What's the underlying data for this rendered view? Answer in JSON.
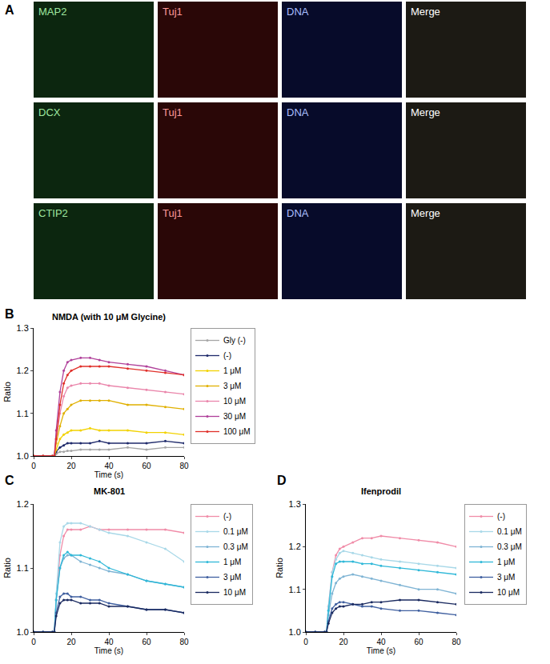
{
  "image_panel": {
    "annotations": [
      "A"
    ],
    "rows": [
      [
        "MAP2",
        "Tuj1",
        "DNA",
        "Merge"
      ],
      [
        "DCX",
        "Tuj1",
        "DNA",
        "Merge"
      ],
      [
        "CTIP2",
        "Tuj1",
        "DNA",
        "Merge"
      ]
    ]
  },
  "chart_data": [
    {
      "type": "line",
      "annotations": [
        "B"
      ],
      "title": "NMDA (with 10 μM Glycine)",
      "x_label": "Time (s)",
      "y_label": "Ratio",
      "x": [
        0,
        5,
        10,
        11,
        12,
        14,
        16,
        18,
        20,
        25,
        30,
        35,
        40,
        50,
        60,
        70,
        80
      ],
      "xlim": [
        0,
        80
      ],
      "xticks": [
        0,
        20,
        40,
        60,
        80
      ],
      "ylim": [
        1.0,
        1.3
      ],
      "yticks": [
        {
          "value": 1.0,
          "label": "1.0"
        },
        1.1,
        1.2,
        1.3
      ],
      "grid": false,
      "legend": "right",
      "marker": "circle",
      "series": [
        {
          "name": "Gly (-)",
          "color": "#a6a6a6",
          "values": [
            1,
            1,
            1,
            1,
            1.005,
            1.01,
            1.01,
            1.012,
            1.012,
            1.015,
            1.015,
            1.015,
            1.015,
            1.02,
            1.015,
            1.02,
            1.02
          ]
        },
        {
          "name": "(-)",
          "color": "#1f2a6b",
          "values": [
            1,
            1,
            1,
            1,
            1.01,
            1.02,
            1.025,
            1.03,
            1.03,
            1.03,
            1.03,
            1.035,
            1.03,
            1.03,
            1.03,
            1.035,
            1.03
          ]
        },
        {
          "name": "1 μM",
          "color": "#f2d200",
          "values": [
            1,
            1,
            1,
            1,
            1.015,
            1.04,
            1.05,
            1.055,
            1.06,
            1.06,
            1.065,
            1.06,
            1.06,
            1.06,
            1.055,
            1.055,
            1.05
          ]
        },
        {
          "name": "3 μM",
          "color": "#e0b000",
          "values": [
            1,
            1,
            1,
            1,
            1.03,
            1.07,
            1.1,
            1.11,
            1.12,
            1.13,
            1.13,
            1.13,
            1.13,
            1.12,
            1.12,
            1.115,
            1.11
          ]
        },
        {
          "name": "10 μM",
          "color": "#ea86ab",
          "values": [
            1,
            1,
            1,
            1,
            1.04,
            1.1,
            1.14,
            1.16,
            1.165,
            1.17,
            1.17,
            1.17,
            1.165,
            1.16,
            1.155,
            1.15,
            1.145
          ]
        },
        {
          "name": "30 μM",
          "color": "#b0409a",
          "values": [
            1,
            1,
            1,
            1,
            1.06,
            1.15,
            1.2,
            1.22,
            1.225,
            1.23,
            1.23,
            1.225,
            1.22,
            1.215,
            1.21,
            1.2,
            1.19
          ]
        },
        {
          "name": "100 μM",
          "color": "#e0302a",
          "values": [
            1,
            1,
            1,
            1,
            1.04,
            1.12,
            1.17,
            1.19,
            1.2,
            1.21,
            1.21,
            1.21,
            1.21,
            1.205,
            1.2,
            1.195,
            1.19
          ]
        }
      ]
    },
    {
      "type": "line",
      "annotations": [
        "C"
      ],
      "title": "MK-801",
      "x_label": "Time (s)",
      "y_label": "Ratio",
      "x": [
        0,
        5,
        10,
        11,
        12,
        14,
        16,
        18,
        20,
        25,
        30,
        35,
        40,
        50,
        60,
        70,
        80
      ],
      "xlim": [
        0,
        80
      ],
      "xticks": [
        0,
        20,
        40,
        60,
        80
      ],
      "ylim": [
        1.0,
        1.2
      ],
      "yticks": [
        {
          "value": 1.0,
          "label": "1.0"
        },
        1.1,
        1.2
      ],
      "grid": false,
      "legend": "right",
      "marker": "circle",
      "series": [
        {
          "name": "(-)",
          "color": "#f08ca8",
          "values": [
            1,
            1,
            1,
            1,
            1.05,
            1.12,
            1.15,
            1.16,
            1.16,
            1.16,
            1.165,
            1.16,
            1.16,
            1.16,
            1.16,
            1.16,
            1.155
          ]
        },
        {
          "name": "0.1 μM",
          "color": "#a8d8e8",
          "values": [
            1,
            1,
            1,
            1,
            1.06,
            1.14,
            1.165,
            1.17,
            1.17,
            1.17,
            1.165,
            1.16,
            1.155,
            1.15,
            1.14,
            1.13,
            1.11
          ]
        },
        {
          "name": "0.3 μM",
          "color": "#7fb4d4",
          "values": [
            1,
            1,
            1,
            1,
            1.05,
            1.1,
            1.115,
            1.12,
            1.12,
            1.11,
            1.105,
            1.1,
            1.095,
            1.09,
            1.08,
            1.075,
            1.07
          ]
        },
        {
          "name": "1 μM",
          "color": "#2fb8d8",
          "values": [
            1,
            1,
            1,
            1,
            1.05,
            1.1,
            1.12,
            1.125,
            1.12,
            1.12,
            1.115,
            1.11,
            1.1,
            1.09,
            1.08,
            1.075,
            1.07
          ]
        },
        {
          "name": "3 μM",
          "color": "#4060a0",
          "values": [
            1,
            1,
            1,
            1,
            1.03,
            1.055,
            1.06,
            1.06,
            1.055,
            1.055,
            1.05,
            1.05,
            1.045,
            1.04,
            1.035,
            1.035,
            1.03
          ]
        },
        {
          "name": "10 μM",
          "color": "#1a2a60",
          "values": [
            1,
            1,
            1,
            1,
            1.025,
            1.045,
            1.05,
            1.05,
            1.05,
            1.045,
            1.045,
            1.045,
            1.04,
            1.04,
            1.035,
            1.035,
            1.03
          ]
        }
      ]
    },
    {
      "type": "line",
      "annotations": [
        "D"
      ],
      "title": "Ifenprodil",
      "x_label": "Time (s)",
      "y_label": "Ratio",
      "x": [
        0,
        5,
        10,
        11,
        12,
        14,
        16,
        18,
        20,
        25,
        30,
        35,
        40,
        50,
        60,
        70,
        80
      ],
      "xlim": [
        0,
        80
      ],
      "xticks": [
        0,
        20,
        40,
        60,
        80
      ],
      "ylim": [
        1.0,
        1.3
      ],
      "yticks": [
        {
          "value": 1.0,
          "label": "1.0"
        },
        1.1,
        1.2,
        1.3
      ],
      "grid": false,
      "legend": "right",
      "marker": "circle",
      "series": [
        {
          "name": "(-)",
          "color": "#f08ca8",
          "values": [
            1,
            1,
            1,
            1,
            1.06,
            1.14,
            1.18,
            1.195,
            1.2,
            1.21,
            1.22,
            1.22,
            1.225,
            1.22,
            1.215,
            1.21,
            1.2
          ]
        },
        {
          "name": "0.1 μM",
          "color": "#a8d8e8",
          "values": [
            1,
            1,
            1,
            1,
            1.06,
            1.14,
            1.17,
            1.185,
            1.19,
            1.185,
            1.18,
            1.175,
            1.17,
            1.165,
            1.16,
            1.155,
            1.15
          ]
        },
        {
          "name": "0.3 μM",
          "color": "#7fb4d4",
          "values": [
            1,
            1,
            1,
            1,
            1.04,
            1.09,
            1.115,
            1.125,
            1.13,
            1.135,
            1.13,
            1.125,
            1.12,
            1.11,
            1.1,
            1.1,
            1.09
          ]
        },
        {
          "name": "1 μM",
          "color": "#2fb8d8",
          "values": [
            1,
            1,
            1,
            1,
            1.05,
            1.13,
            1.16,
            1.165,
            1.165,
            1.165,
            1.16,
            1.16,
            1.155,
            1.15,
            1.145,
            1.14,
            1.135
          ]
        },
        {
          "name": "3 μM",
          "color": "#4060a0",
          "values": [
            1,
            1,
            1,
            1,
            1.025,
            1.055,
            1.065,
            1.07,
            1.07,
            1.065,
            1.06,
            1.06,
            1.055,
            1.05,
            1.05,
            1.045,
            1.04
          ]
        },
        {
          "name": "10 μM",
          "color": "#1a2a60",
          "values": [
            1,
            1,
            1,
            1,
            1.02,
            1.045,
            1.055,
            1.06,
            1.06,
            1.065,
            1.065,
            1.07,
            1.07,
            1.075,
            1.075,
            1.07,
            1.065
          ]
        }
      ]
    }
  ]
}
